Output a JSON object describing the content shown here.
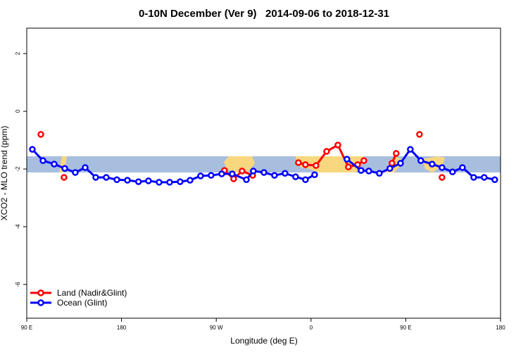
{
  "chart_data": {
    "type": "line",
    "title": "0-10N December (Ver 9)   2014-09-06 to 2018-12-31",
    "x_label": "Longitude (deg E)",
    "y_label": "XCO2 - MLO trend (ppm)",
    "xlim": [
      90,
      540
    ],
    "xticks": [
      {
        "value": 90,
        "label": "90 E"
      },
      180,
      {
        "value": 270,
        "label": "90 W"
      },
      {
        "value": 360,
        "label": "0"
      },
      {
        "value": 450,
        "label": "90 E"
      },
      {
        "value": 540,
        "label": "180"
      }
    ],
    "ylim": [
      -7.17,
      2.88
    ],
    "yticks": [
      -6,
      -4,
      -2,
      0,
      2
    ],
    "legend": "bottom-left",
    "series": [
      {
        "name": "Land (Nadir&Glint)",
        "color": "#ff0000",
        "x": [
          103.4,
          null,
          125.4,
          null,
          277.8,
          286.5,
          294.5,
          304.6,
          null,
          348.0,
          354.7,
          364.7,
          374.8,
          385.5,
          395.5,
          404.2,
          410.2,
          null,
          436.9,
          440.9,
          null,
          463.0,
          null,
          484.4
        ],
        "values": [
          -0.8,
          null,
          -2.29,
          null,
          -2.05,
          -2.34,
          -2.07,
          -2.22,
          null,
          -1.78,
          -1.85,
          -1.88,
          -1.39,
          -1.17,
          -1.93,
          -1.85,
          -1.71,
          null,
          -1.8,
          -1.46,
          null,
          -0.8,
          null,
          -2.29
        ]
      },
      {
        "name": "Ocean (Glint)",
        "color": "#0000ff",
        "x": [
          95.3,
          105.4,
          116.1,
          126.1,
          136.1,
          145.5,
          155.5,
          165.5,
          175.6,
          185.6,
          196.1,
          205.6,
          215.7,
          225.7,
          235.7,
          245.1,
          255.1,
          265.1,
          275.2,
          285.2,
          298.6,
          305.2,
          315.3,
          325.3,
          335.3,
          345.3,
          354.7,
          363.4,
          null,
          394.1,
          407.5,
          414.9,
          424.9,
          434.9,
          445.0,
          454.3,
          464.3,
          475.0,
          484.4,
          494.4,
          503.8,
          514.5,
          524.5,
          534.5
        ],
        "values": [
          -1.32,
          -1.71,
          -1.83,
          -1.98,
          -2.12,
          -1.95,
          -2.29,
          -2.29,
          -2.37,
          -2.39,
          -2.44,
          -2.41,
          -2.46,
          -2.46,
          -2.44,
          -2.39,
          -2.24,
          -2.22,
          -2.17,
          -2.17,
          -2.37,
          -2.07,
          -2.12,
          -2.22,
          -2.15,
          -2.27,
          -2.37,
          -2.2,
          null,
          -1.66,
          -2.05,
          -2.07,
          -2.15,
          -1.98,
          -1.8,
          -1.32,
          -1.71,
          -1.83,
          -1.95,
          -2.1,
          -1.95,
          -2.29,
          -2.29,
          -2.37
        ]
      }
    ]
  }
}
